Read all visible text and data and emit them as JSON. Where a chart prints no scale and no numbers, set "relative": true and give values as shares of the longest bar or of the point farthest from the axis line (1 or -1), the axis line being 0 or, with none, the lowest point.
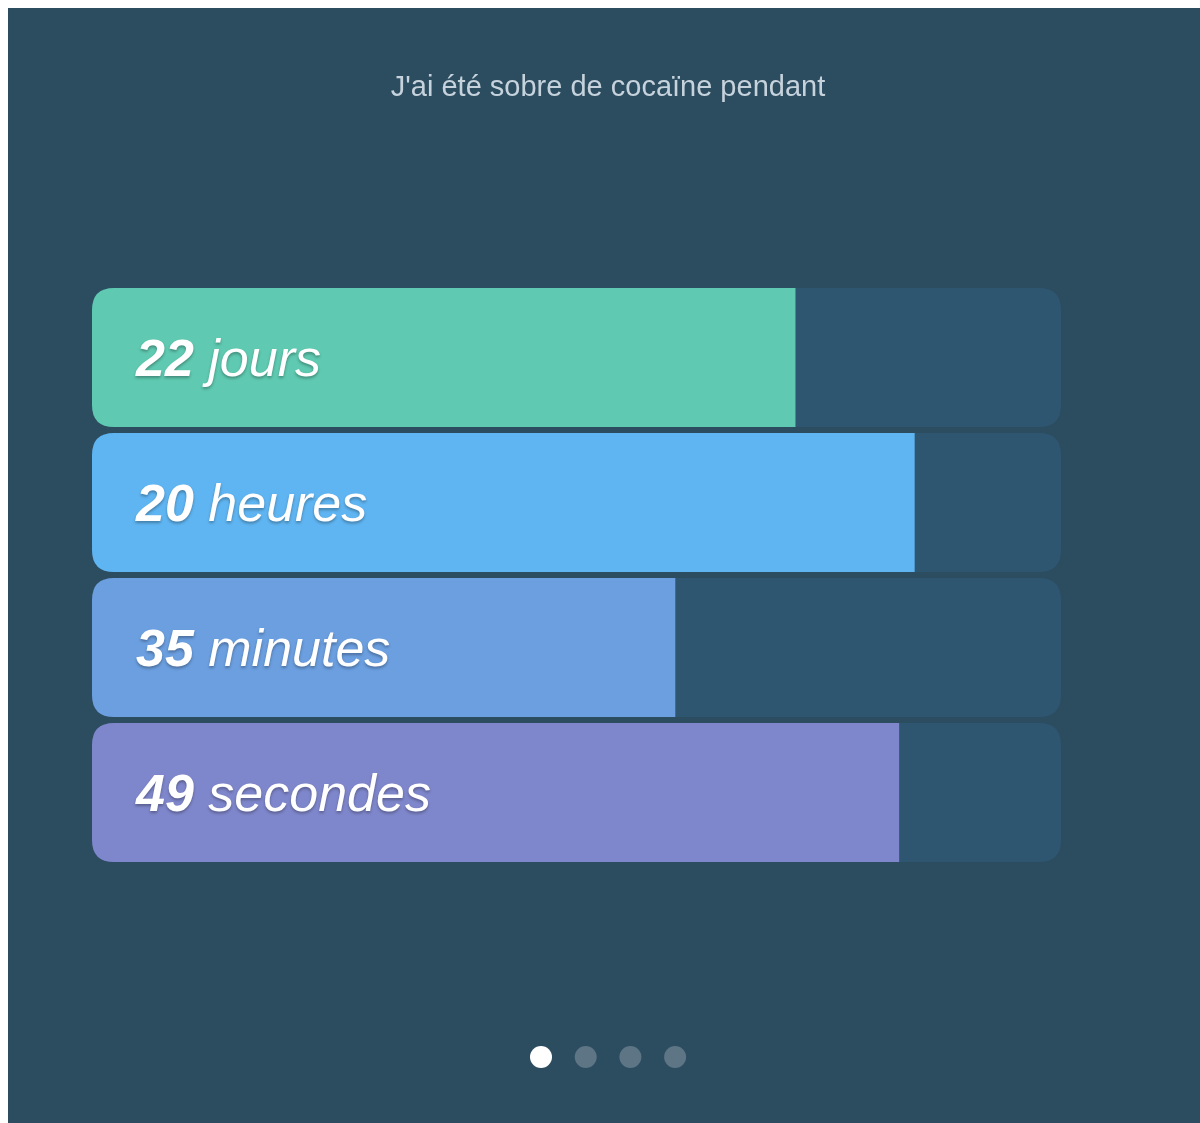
{
  "chart_data": {
    "type": "bar",
    "orientation": "horizontal",
    "relative": true,
    "stacked": true,
    "title": "J'ai été sobre de cocaïne pendant",
    "categories": [
      "22 jours",
      "20 heures",
      "35 minutes",
      "49 secondes"
    ],
    "series": [
      {
        "colors": [
          "#5fcab1",
          "#5fb5f2",
          "#6b9fe0",
          "#7f87cc"
        ],
        "values": [
          0.726,
          0.849,
          0.602,
          0.833
        ]
      },
      {
        "color": "#2f5670",
        "values": [
          0.274,
          0.151,
          0.398,
          0.167
        ]
      }
    ]
  }
}
